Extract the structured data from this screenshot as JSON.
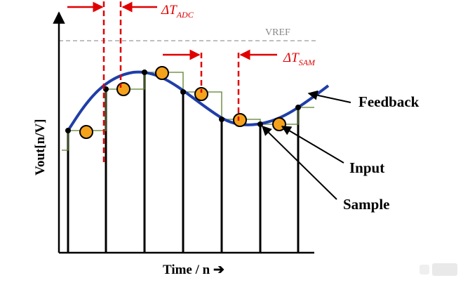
{
  "diagram": {
    "colors": {
      "curve": "#1f3ea8",
      "red_marker": "#e00000",
      "sample_dot": "#f4a21c",
      "sample_step": "#5a7f2b",
      "vref_line": "#aaaaaa",
      "axis": "#000000"
    },
    "labels": {
      "vref": "VREF",
      "delta_adc": "ΔT",
      "delta_adc_sub": "ADC",
      "delta_sam": "ΔT",
      "delta_sam_sub": "SAM",
      "feedback": "Feedback",
      "input": "Input",
      "sample": "Sample",
      "y_axis": "Vout[n/V]",
      "x_axis": "Time / n ➔"
    }
  }
}
